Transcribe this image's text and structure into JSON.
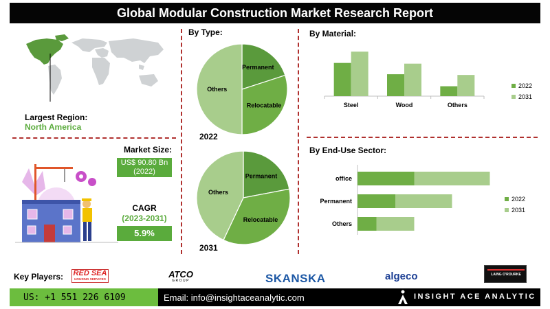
{
  "header": {
    "title": "Global Modular Construction Market Research Report"
  },
  "region": {
    "label": "Largest Region:",
    "value": "North America"
  },
  "market_size": {
    "label": "Market Size:",
    "value": "US$ 90.80 Bn",
    "year": "(2022)"
  },
  "cagr": {
    "label": "CAGR",
    "years": "(2023-2031)",
    "value": "5.9%"
  },
  "by_type": {
    "title": "By  Type:"
  },
  "by_material": {
    "title": "By Material:"
  },
  "by_end_use": {
    "title": "By End-Use Sector:"
  },
  "key_players": {
    "label": "Key Players:",
    "logos": [
      "RED SEA",
      "HOUSING SERVICES",
      "ATCO",
      "GROUP",
      "SKANSKA",
      "algeco",
      "LAING O'ROURKE"
    ]
  },
  "footer": {
    "phone": "US: +1 551 226 6109",
    "email": "Email: info@insightaceanalytic.com",
    "brand": "INSIGHT ACE ANALYTIC"
  },
  "colors": {
    "dark_green": "#5a9a3c",
    "mid_green": "#6fae45",
    "light_green": "#a8cd8c",
    "accent_red": "#b0302e"
  },
  "chart_data": [
    {
      "type": "pie",
      "label": "2022",
      "slices": [
        {
          "name": "Permanent",
          "value": 20
        },
        {
          "name": "Relocatable",
          "value": 30
        },
        {
          "name": "Others",
          "value": 50
        }
      ]
    },
    {
      "type": "pie",
      "label": "2031",
      "slices": [
        {
          "name": "Permanent",
          "value": 22
        },
        {
          "name": "Relocatable",
          "value": 35
        },
        {
          "name": "Others",
          "value": 43
        }
      ]
    },
    {
      "type": "bar",
      "orientation": "vertical",
      "categories": [
        "Steel",
        "Wood",
        "Others"
      ],
      "series": [
        {
          "name": "2022",
          "values": [
            47,
            31,
            14
          ]
        },
        {
          "name": "2031",
          "values": [
            63,
            46,
            30
          ]
        }
      ],
      "legend": "right"
    },
    {
      "type": "bar",
      "orientation": "horizontal",
      "stacked": true,
      "categories": [
        "office",
        "Permanent",
        "Others"
      ],
      "series": [
        {
          "name": "2022",
          "values": [
            60,
            40,
            20
          ]
        },
        {
          "name": "2031",
          "values": [
            80,
            60,
            40
          ]
        }
      ],
      "legend": "right"
    }
  ]
}
